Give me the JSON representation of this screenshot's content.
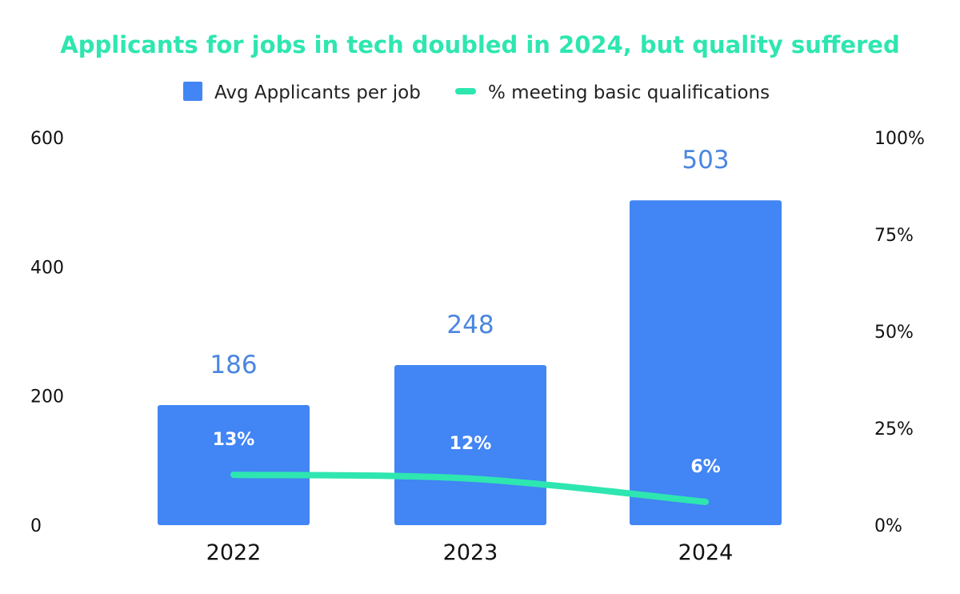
{
  "chart_data": {
    "type": "bar",
    "title": "Applicants for jobs in tech doubled in 2024, but quality suffered",
    "categories": [
      "2022",
      "2023",
      "2024"
    ],
    "series": [
      {
        "name": "Avg Applicants per job",
        "type": "bar",
        "axis": "left",
        "values": [
          186,
          248,
          503
        ],
        "labels": [
          "186",
          "248",
          "503"
        ],
        "color": "#4285f4"
      },
      {
        "name": "% meeting basic qualifications",
        "type": "line",
        "axis": "right",
        "values": [
          13,
          12,
          6
        ],
        "labels": [
          "13%",
          "12%",
          "6%"
        ],
        "color": "#2ee6b0"
      }
    ],
    "y_left": {
      "min": 0,
      "max": 600,
      "ticks": [
        "0",
        "200",
        "400",
        "600"
      ]
    },
    "y_right": {
      "min": 0,
      "max": 100,
      "ticks": [
        "0%",
        "25%",
        "50%",
        "75%",
        "100%"
      ]
    },
    "legend_position": "top-center",
    "grid": false
  },
  "colors": {
    "title": "#2ee6b0",
    "bar": "#4285f4",
    "bar_value_label": "#4a86e0",
    "line": "#2ee6b0"
  }
}
